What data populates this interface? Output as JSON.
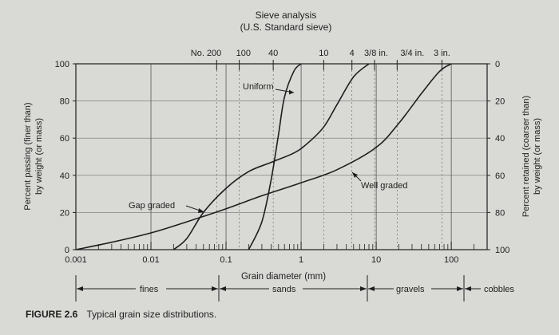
{
  "chart_data": {
    "type": "line",
    "title": "Sieve analysis",
    "subtitle": "(U.S. Standard sieve)",
    "x_scale": "log",
    "xlim": [
      0.001,
      300
    ],
    "ylim": [
      0,
      100
    ],
    "xlabel": "Grain diameter (mm)",
    "ylabel_left": [
      "Percent passing (finer than)",
      "by weight (or mass)"
    ],
    "ylabel_right": [
      "Percent retained (coarser than)",
      "by weight (or mass)"
    ],
    "x_ticks": [
      {
        "value": 0.001,
        "label": "0.001"
      },
      {
        "value": 0.01,
        "label": "0.01"
      },
      {
        "value": 0.1,
        "label": "0.1"
      },
      {
        "value": 1,
        "label": "1"
      },
      {
        "value": 10,
        "label": "10"
      },
      {
        "value": 100,
        "label": "100"
      }
    ],
    "y_ticks_left": [
      0,
      20,
      40,
      60,
      80,
      100
    ],
    "y_ticks_right": [
      100,
      80,
      60,
      40,
      20,
      0
    ],
    "sieves": [
      {
        "label": "No. 200",
        "value": 0.075
      },
      {
        "label": "100",
        "value": 0.15
      },
      {
        "label": "40",
        "value": 0.425
      },
      {
        "label": "10",
        "value": 2.0
      },
      {
        "label": "4",
        "value": 4.75
      },
      {
        "label": "3/8 in.",
        "value": 9.5
      },
      {
        "label": "3/4 in.",
        "value": 19.0
      },
      {
        "label": "3 in.",
        "value": 75.0
      }
    ],
    "grid": true,
    "series": [
      {
        "name": "Uniform",
        "points": [
          [
            0.2,
            0
          ],
          [
            0.3,
            15
          ],
          [
            0.4,
            38
          ],
          [
            0.5,
            62
          ],
          [
            0.6,
            82
          ],
          [
            0.8,
            96
          ],
          [
            1.0,
            100
          ]
        ]
      },
      {
        "name": "Gap graded",
        "points": [
          [
            0.02,
            0
          ],
          [
            0.03,
            6
          ],
          [
            0.05,
            20
          ],
          [
            0.1,
            33
          ],
          [
            0.2,
            42
          ],
          [
            0.4,
            47
          ],
          [
            0.8,
            52
          ],
          [
            1.2,
            57
          ],
          [
            2.0,
            66
          ],
          [
            3.0,
            78
          ],
          [
            5.0,
            93
          ],
          [
            8.0,
            100
          ]
        ]
      },
      {
        "name": "Well graded",
        "points": [
          [
            0.001,
            0
          ],
          [
            0.003,
            4
          ],
          [
            0.01,
            9
          ],
          [
            0.03,
            15
          ],
          [
            0.1,
            22
          ],
          [
            0.3,
            29
          ],
          [
            1.0,
            36
          ],
          [
            3.0,
            43
          ],
          [
            10.0,
            55
          ],
          [
            20.0,
            68
          ],
          [
            40.0,
            84
          ],
          [
            70.0,
            96
          ],
          [
            100.0,
            100
          ]
        ]
      }
    ],
    "annotations": {
      "uniform": "Uniform",
      "well_graded": "Well graded",
      "gap_graded": "Gap graded"
    }
  },
  "classification": {
    "fines": "fines",
    "sands": "sands",
    "gravels": "gravels",
    "cobbles": "cobbles"
  },
  "caption": {
    "label": "FIGURE 2.6",
    "text": "Typical grain size distributions."
  }
}
